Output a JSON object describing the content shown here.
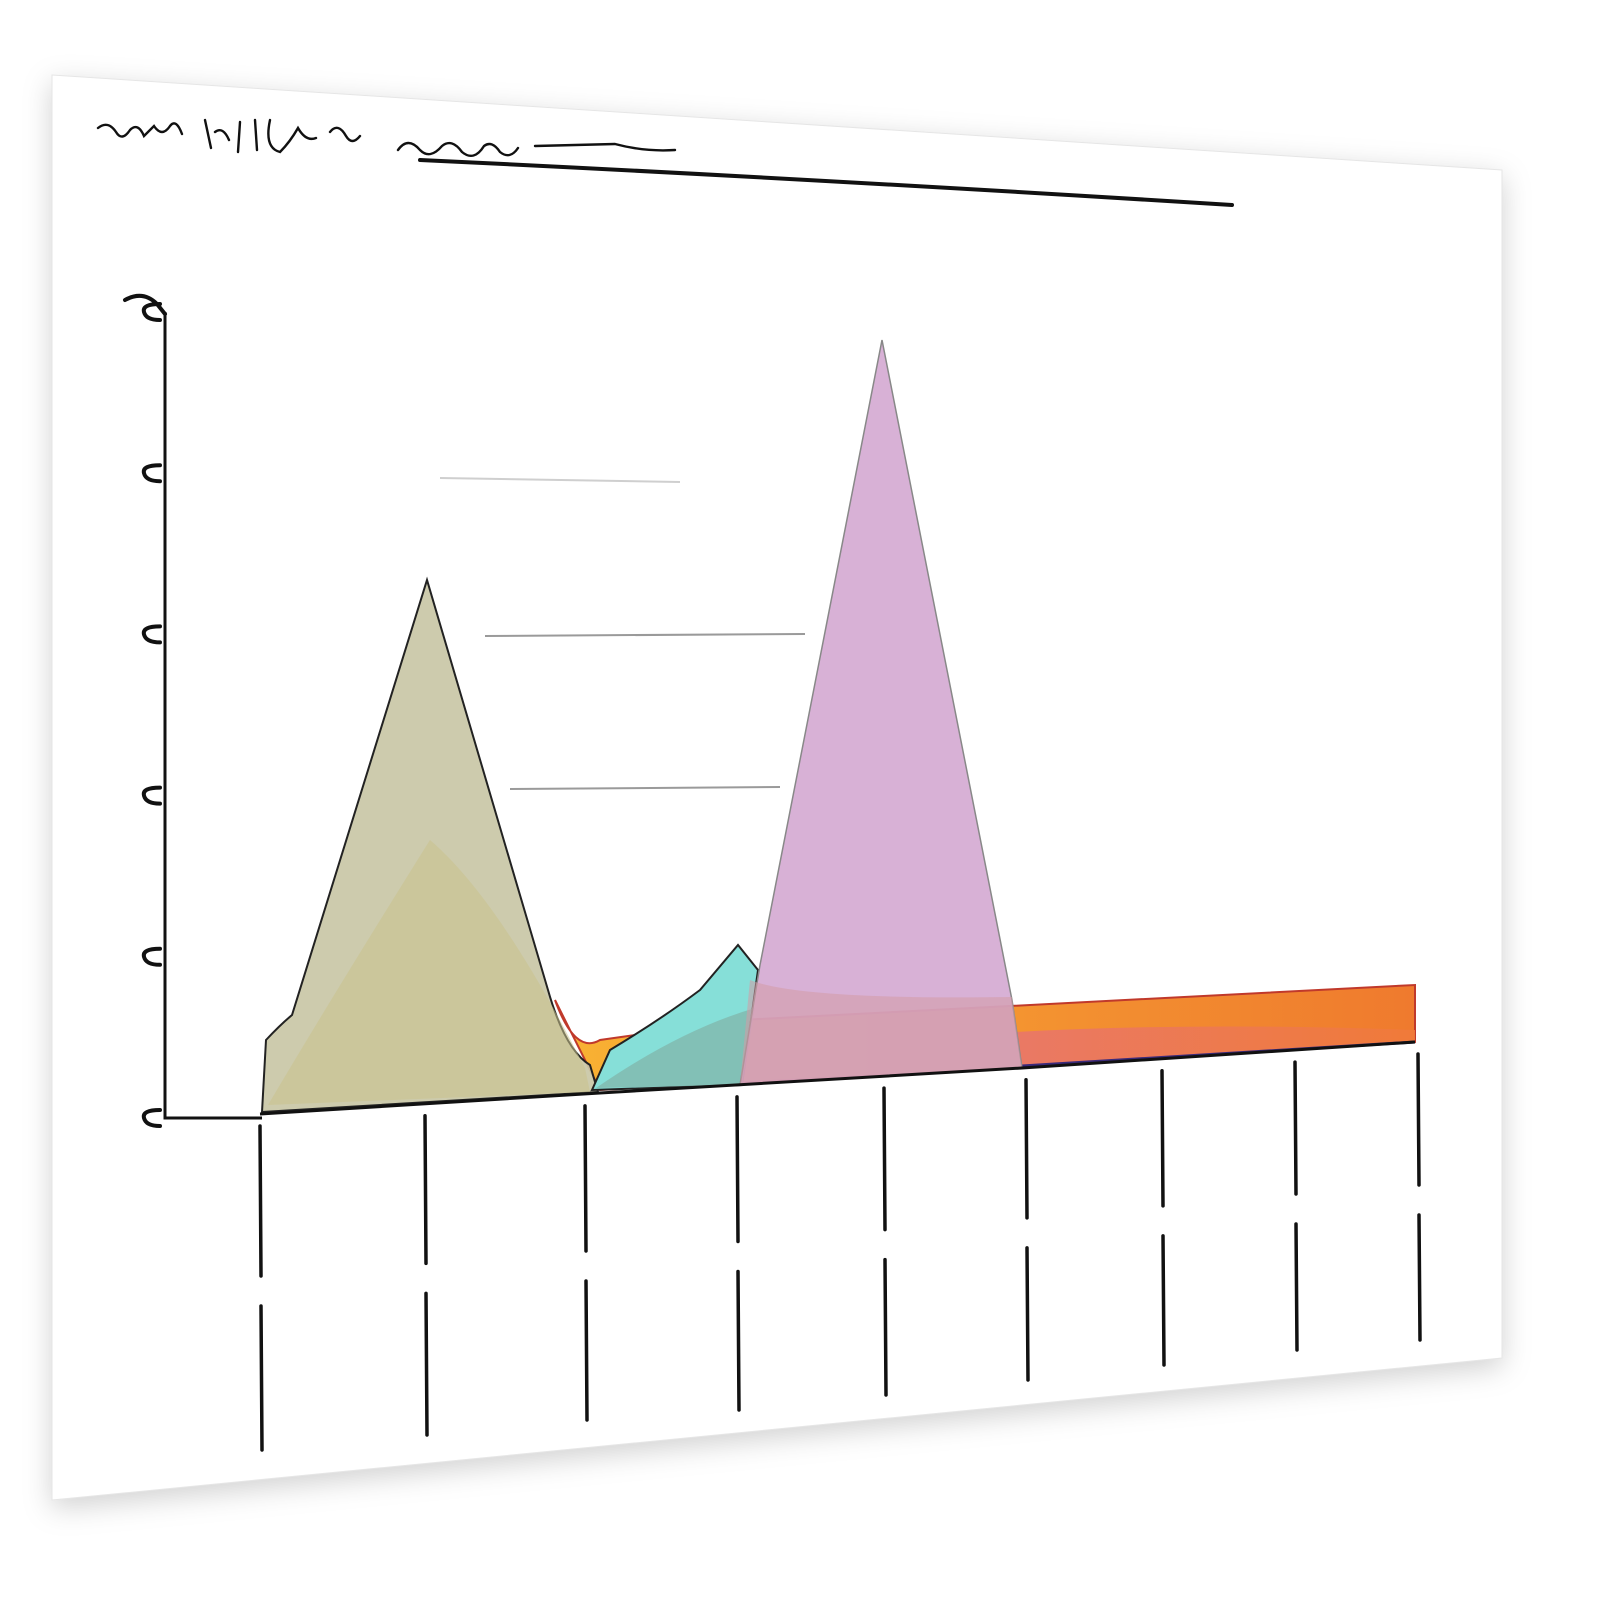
{
  "chart_data": {
    "type": "area",
    "title": "",
    "xlabel": "",
    "ylabel": "",
    "x": [
      0,
      1,
      2,
      3,
      4,
      5,
      6,
      7,
      8
    ],
    "ylim": [
      0,
      5
    ],
    "y_ticks": [
      0,
      1,
      2,
      3,
      4,
      5
    ],
    "grid": false,
    "series": [
      {
        "color": "#c9c7a6",
        "points": [
          [
            0,
            0.4
          ],
          [
            0.2,
            0.55
          ],
          [
            1,
            3.3
          ],
          [
            1.8,
            0.6
          ],
          [
            2.0,
            0.15
          ],
          [
            2.1,
            0
          ]
        ]
      },
      {
        "color": "#d9b3d6",
        "points": [
          [
            3.0,
            0
          ],
          [
            3.15,
            0.9
          ],
          [
            4,
            4.8
          ],
          [
            4.85,
            0.55
          ],
          [
            5.0,
            0
          ]
        ]
      },
      {
        "color": "#7fe0d6",
        "points": [
          [
            2.05,
            0
          ],
          [
            2.5,
            0.35
          ],
          [
            3.0,
            0.85
          ],
          [
            3.15,
            0.8
          ],
          [
            3.1,
            0
          ]
        ]
      },
      {
        "color": "#f5a623",
        "points": [
          [
            1.8,
            0.6
          ],
          [
            2.5,
            0.6
          ],
          [
            3.0,
            0.5
          ],
          [
            5.0,
            0.55
          ],
          [
            8.0,
            0.7
          ],
          [
            8.0,
            0.5
          ],
          [
            5.0,
            0.1
          ],
          [
            2.2,
            0.1
          ]
        ]
      }
    ]
  }
}
